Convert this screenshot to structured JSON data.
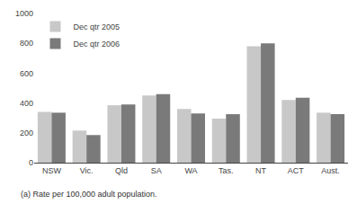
{
  "chart_data": {
    "type": "bar",
    "categories": [
      "NSW",
      "Vic.",
      "Qld",
      "SA",
      "WA",
      "Tas.",
      "NT",
      "ACT",
      "Aust."
    ],
    "series": [
      {
        "name": "Dec qtr 2005",
        "color": "#c8c8c8",
        "values": [
          340,
          215,
          385,
          450,
          360,
          295,
          780,
          420,
          335
        ]
      },
      {
        "name": "Dec qtr 2006",
        "color": "#7a7a7a",
        "values": [
          335,
          185,
          390,
          460,
          330,
          325,
          800,
          435,
          325
        ]
      }
    ],
    "ylim": [
      0,
      1000
    ],
    "yticks": [
      0,
      200,
      400,
      600,
      800,
      1000
    ],
    "grid": false,
    "legend": "upper left",
    "annotations": [
      "(a) Rate per 100,000 adult population."
    ]
  }
}
